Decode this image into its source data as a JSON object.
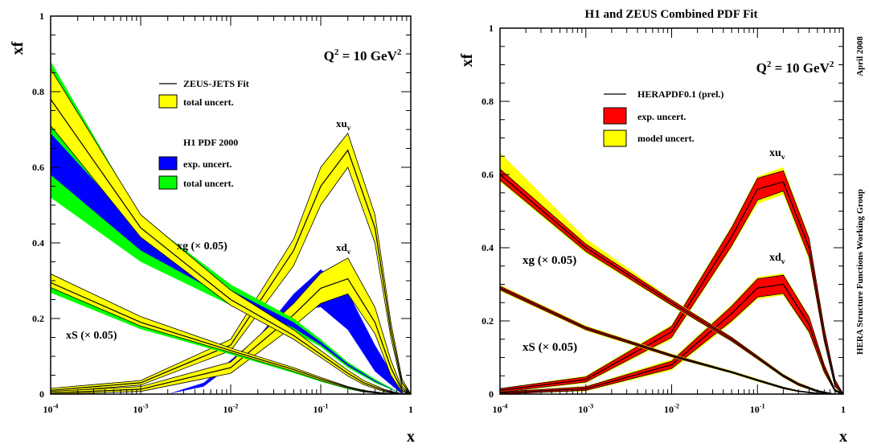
{
  "chart_data": [
    {
      "type": "line",
      "title": "",
      "xlabel": "x",
      "ylabel": "xf",
      "x_scale": "log",
      "xlim": [
        0.0001,
        1
      ],
      "ylim": [
        0,
        1
      ],
      "x_ticks": [
        {
          "base": "10",
          "exp": "-4",
          "value": 0.0001
        },
        {
          "base": "10",
          "exp": "-3",
          "value": 0.001
        },
        {
          "base": "10",
          "exp": "-2",
          "value": 0.01
        },
        {
          "base": "10",
          "exp": "-1",
          "value": 0.1
        },
        {
          "base": "1",
          "exp": "",
          "value": 1
        }
      ],
      "y_ticks": [
        "0",
        "0.2",
        "0.4",
        "0.6",
        "0.8",
        "1"
      ],
      "q2_label": {
        "prefix": "Q",
        "exp": "2",
        "suffix": " = 10 GeV",
        "exp2": "2"
      },
      "curve_labels": {
        "xuv": {
          "main": "xu",
          "sub": "v"
        },
        "xdv": {
          "main": "xd",
          "sub": "v"
        },
        "xg": "xg (× 0.05)",
        "xs": "xS (× 0.05)"
      },
      "legend": [
        {
          "kind": "line",
          "label": "ZEUS-JETS Fit",
          "color": "#000000"
        },
        {
          "kind": "box",
          "label": "total uncert.",
          "color": "#ffff00"
        },
        {
          "kind": "header",
          "label": "H1 PDF 2000"
        },
        {
          "kind": "box",
          "label": "exp. uncert.",
          "color": "#0000ff"
        },
        {
          "kind": "box",
          "label": "total uncert.",
          "color": "#00ff00"
        }
      ],
      "series": [
        {
          "name": "xu_v",
          "x": [
            0.0001,
            0.001,
            0.01,
            0.05,
            0.1,
            0.2,
            0.4,
            0.6,
            0.8,
            1
          ],
          "y": [
            0.01,
            0.03,
            0.13,
            0.38,
            0.55,
            0.645,
            0.44,
            0.17,
            0.03,
            0.0
          ],
          "band": {
            "lo": [
              0.005,
              0.024,
              0.115,
              0.34,
              0.5,
              0.6,
              0.4,
              0.15,
              0.02,
              0.0
            ],
            "hi": [
              0.015,
              0.036,
              0.145,
              0.41,
              0.6,
              0.69,
              0.475,
              0.19,
              0.04,
              0.0
            ],
            "color": "#ffff00"
          }
        },
        {
          "name": "xd_v",
          "x": [
            0.0001,
            0.001,
            0.01,
            0.05,
            0.1,
            0.2,
            0.4,
            0.6,
            0.8,
            1
          ],
          "y": [
            0.003,
            0.013,
            0.07,
            0.21,
            0.28,
            0.305,
            0.19,
            0.07,
            0.01,
            0.0
          ],
          "band": {
            "lo": [
              0.0,
              0.007,
              0.055,
              0.18,
              0.24,
              0.265,
              0.16,
              0.05,
              0.005,
              0.0
            ],
            "hi": [
              0.007,
              0.02,
              0.085,
              0.24,
              0.32,
              0.36,
              0.23,
              0.09,
              0.015,
              0.0
            ],
            "color": "#ffff00"
          },
          "h1_band": {
            "lo": [
              0.0,
              0.02,
              0.13,
              0.22,
              0.23,
              0.17,
              0.06,
              0.0
            ],
            "hi": [
              0.0,
              0.03,
              0.15,
              0.265,
              0.33,
              0.27,
              0.13,
              0.01
            ],
            "x": [
              0.002,
              0.005,
              0.02,
              0.05,
              0.1,
              0.2,
              0.4,
              0.8
            ],
            "color": "#0000ff"
          }
        },
        {
          "name": "xg (x0.05)",
          "x": [
            0.0001,
            0.001,
            0.01,
            0.05,
            0.1,
            0.2,
            0.3,
            0.5,
            0.8,
            1
          ],
          "y": [
            0.78,
            0.44,
            0.25,
            0.155,
            0.105,
            0.055,
            0.03,
            0.01,
            0.0,
            0.0
          ],
          "band": {
            "lo": [
              0.71,
              0.415,
              0.235,
              0.145,
              0.097,
              0.048,
              0.025,
              0.007,
              0.0,
              0.0
            ],
            "hi": [
              0.86,
              0.475,
              0.275,
              0.17,
              0.115,
              0.063,
              0.036,
              0.013,
              0.0,
              0.0
            ],
            "color": "#ffff00"
          },
          "h1_band": {
            "lo": [
              0.52,
              0.35,
              0.235,
              0.165,
              0.125,
              0.07,
              0.03,
              0.0
            ],
            "hi": [
              0.88,
              0.47,
              0.29,
              0.2,
              0.145,
              0.085,
              0.04,
              0.0
            ],
            "mid_lo": [
              0.58,
              0.38,
              0.25,
              0.175,
              0.13,
              0.075,
              0.033,
              0.0
            ],
            "mid_hi": [
              0.69,
              0.43,
              0.275,
              0.19,
              0.138,
              0.08,
              0.036,
              0.0
            ],
            "x": [
              0.0001,
              0.001,
              0.01,
              0.05,
              0.1,
              0.2,
              0.4,
              0.8
            ],
            "colors": [
              "#00ff00",
              "#0000ff"
            ]
          }
        },
        {
          "name": "xS (x0.05)",
          "x": [
            0.0001,
            0.001,
            0.01,
            0.05,
            0.1,
            0.2,
            0.3,
            0.5,
            1
          ],
          "y": [
            0.295,
            0.19,
            0.115,
            0.065,
            0.04,
            0.018,
            0.008,
            0.002,
            0.0
          ],
          "band": {
            "lo": [
              0.282,
              0.18,
              0.11,
              0.06,
              0.036,
              0.015,
              0.006,
              0.001,
              0.0
            ],
            "hi": [
              0.318,
              0.205,
              0.122,
              0.07,
              0.044,
              0.02,
              0.01,
              0.003,
              0.0
            ],
            "color": "#ffff00"
          },
          "h1_band": {
            "lo": [
              0.268,
              0.172,
              0.105,
              0.056,
              0.033,
              0.013,
              0.005,
              0.0,
              0.0
            ],
            "hi": [
              0.288,
              0.186,
              0.113,
              0.063,
              0.039,
              0.017,
              0.007,
              0.0,
              0.0
            ],
            "x": [
              0.0001,
              0.001,
              0.01,
              0.05,
              0.1,
              0.2,
              0.3,
              0.5,
              1
            ],
            "colors": [
              "#00ff00",
              "#0000ff"
            ]
          }
        }
      ]
    },
    {
      "type": "line",
      "title": "H1 and ZEUS Combined PDF Fit",
      "xlabel": "x",
      "ylabel": "xf",
      "x_scale": "log",
      "xlim": [
        0.0001,
        1
      ],
      "ylim": [
        0,
        1
      ],
      "x_ticks": [
        {
          "base": "10",
          "exp": "-4",
          "value": 0.0001
        },
        {
          "base": "10",
          "exp": "-3",
          "value": 0.001
        },
        {
          "base": "10",
          "exp": "-2",
          "value": 0.01
        },
        {
          "base": "10",
          "exp": "-1",
          "value": 0.1
        },
        {
          "base": "1",
          "exp": "",
          "value": 1
        }
      ],
      "y_ticks": [
        "0",
        "0.2",
        "0.4",
        "0.6",
        "0.8",
        "1"
      ],
      "q2_label": {
        "prefix": "Q",
        "exp": "2",
        "suffix": " = 10 GeV",
        "exp2": "2"
      },
      "side_labels": [
        "April 2008",
        "HERA Structure Functions Working Group"
      ],
      "curve_labels": {
        "xuv": {
          "main": "xu",
          "sub": "v"
        },
        "xdv": {
          "main": "xd",
          "sub": "v"
        },
        "xg": "xg (× 0.05)",
        "xs": "xS (× 0.05)"
      },
      "legend": [
        {
          "kind": "line",
          "label": "HERAPDF0.1 (prel.)",
          "color": "#000000"
        },
        {
          "kind": "box",
          "label": "exp. uncert.",
          "color": "#ff0000"
        },
        {
          "kind": "box",
          "label": "model uncert.",
          "color": "#ffff00"
        }
      ],
      "series": [
        {
          "name": "xu_v",
          "x": [
            0.0001,
            0.001,
            0.01,
            0.05,
            0.1,
            0.2,
            0.4,
            0.6,
            0.8,
            1
          ],
          "y": [
            0.01,
            0.04,
            0.17,
            0.43,
            0.56,
            0.58,
            0.4,
            0.16,
            0.03,
            0.0
          ],
          "band": {
            "lo": [
              0.005,
              0.033,
              0.155,
              0.405,
              0.53,
              0.555,
              0.375,
              0.145,
              0.02,
              0.0
            ],
            "hi": [
              0.015,
              0.047,
              0.185,
              0.455,
              0.59,
              0.61,
              0.425,
              0.18,
              0.04,
              0.0
            ],
            "color": "#ff0000"
          },
          "model_band": {
            "lo": [
              0.004,
              0.03,
              0.15,
              0.4,
              0.52,
              0.545,
              0.365,
              0.14,
              0.02,
              0.0
            ],
            "hi": [
              0.016,
              0.05,
              0.19,
              0.46,
              0.595,
              0.62,
              0.43,
              0.185,
              0.04,
              0.0
            ],
            "color": "#ffff00"
          }
        },
        {
          "name": "xd_v",
          "x": [
            0.0001,
            0.001,
            0.01,
            0.05,
            0.1,
            0.2,
            0.4,
            0.6,
            0.8,
            1
          ],
          "y": [
            0.003,
            0.015,
            0.08,
            0.22,
            0.29,
            0.3,
            0.19,
            0.07,
            0.01,
            0.0
          ],
          "band": {
            "lo": [
              0.0,
              0.01,
              0.07,
              0.2,
              0.265,
              0.275,
              0.17,
              0.06,
              0.007,
              0.0
            ],
            "hi": [
              0.006,
              0.02,
              0.09,
              0.24,
              0.315,
              0.325,
              0.21,
              0.08,
              0.013,
              0.0
            ],
            "color": "#ff0000"
          },
          "model_band": {
            "lo": [
              0.0,
              0.008,
              0.065,
              0.195,
              0.26,
              0.27,
              0.165,
              0.055,
              0.006,
              0.0
            ],
            "hi": [
              0.007,
              0.022,
              0.095,
              0.245,
              0.32,
              0.33,
              0.215,
              0.085,
              0.015,
              0.0
            ],
            "color": "#ffff00"
          }
        },
        {
          "name": "xg (x0.05)",
          "x": [
            0.0001,
            0.001,
            0.01,
            0.05,
            0.1,
            0.2,
            0.3,
            0.5,
            0.8,
            1
          ],
          "y": [
            0.6,
            0.4,
            0.25,
            0.15,
            0.1,
            0.05,
            0.027,
            0.008,
            0.0,
            0.0
          ],
          "band": {
            "lo": [
              0.585,
              0.39,
              0.243,
              0.145,
              0.096,
              0.047,
              0.024,
              0.006,
              0.0,
              0.0
            ],
            "hi": [
              0.615,
              0.41,
              0.257,
              0.155,
              0.104,
              0.053,
              0.03,
              0.01,
              0.0,
              0.0
            ],
            "color": "#ff0000"
          },
          "model_band": {
            "lo": [
              0.58,
              0.385,
              0.24,
              0.143,
              0.094,
              0.045,
              0.022,
              0.005,
              0.0,
              0.0
            ],
            "hi": [
              0.66,
              0.425,
              0.26,
              0.157,
              0.106,
              0.055,
              0.032,
              0.011,
              0.0,
              0.0
            ],
            "color": "#ffff00"
          }
        },
        {
          "name": "xS (x0.05)",
          "x": [
            0.0001,
            0.001,
            0.01,
            0.05,
            0.1,
            0.2,
            0.3,
            0.5,
            1
          ],
          "y": [
            0.29,
            0.18,
            0.105,
            0.06,
            0.038,
            0.017,
            0.008,
            0.002,
            0.0
          ],
          "band": {
            "lo": [
              0.285,
              0.176,
              0.102,
              0.058,
              0.036,
              0.015,
              0.007,
              0.001,
              0.0
            ],
            "hi": [
              0.295,
              0.184,
              0.108,
              0.062,
              0.04,
              0.019,
              0.009,
              0.003,
              0.0
            ],
            "color": "#ff0000"
          },
          "model_band": {
            "lo": [
              0.282,
              0.173,
              0.1,
              0.056,
              0.034,
              0.014,
              0.006,
              0.001,
              0.0
            ],
            "hi": [
              0.298,
              0.187,
              0.11,
              0.064,
              0.042,
              0.02,
              0.01,
              0.003,
              0.0
            ],
            "color": "#ffff00"
          }
        }
      ]
    }
  ]
}
